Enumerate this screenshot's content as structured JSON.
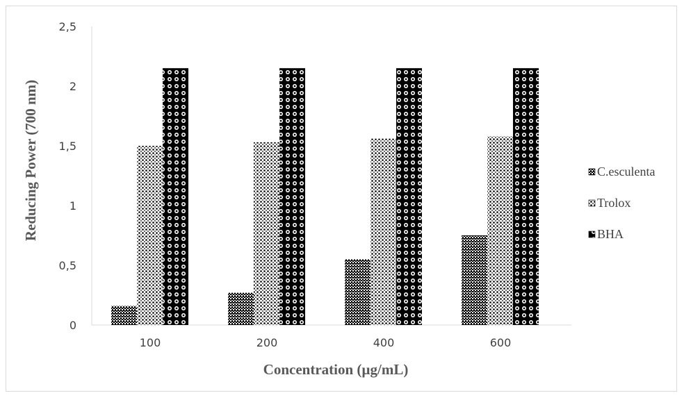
{
  "chart_data": {
    "type": "bar",
    "categories": [
      "100",
      "200",
      "400",
      "600"
    ],
    "series": [
      {
        "name": "C.esculenta",
        "values": [
          0.16,
          0.27,
          0.55,
          0.75
        ]
      },
      {
        "name": "Trolox",
        "values": [
          1.5,
          1.53,
          1.56,
          1.58
        ]
      },
      {
        "name": "BHA",
        "values": [
          2.15,
          2.15,
          2.15,
          2.15
        ]
      }
    ],
    "xlabel": "Concentration (µg/mL)",
    "ylabel": "Reducing Power (700 nm)",
    "ylim": [
      0,
      2.5
    ],
    "yticks": [
      "0",
      "0,5",
      "1",
      "1,5",
      "2",
      "2,5"
    ],
    "grid": false,
    "legend_position": "right"
  }
}
